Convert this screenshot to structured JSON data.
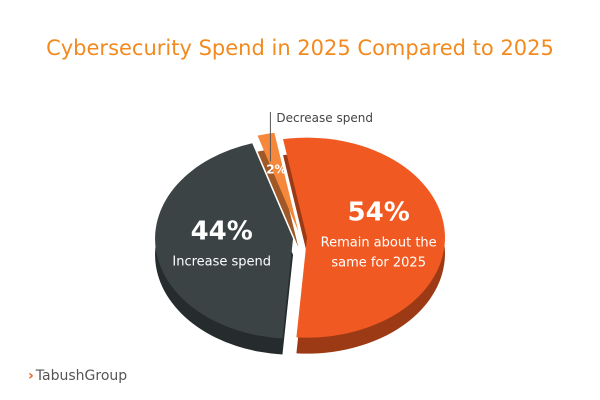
{
  "chart_data": {
    "type": "pie",
    "title": "Cybersecurity Spend in 2025 Compared to 2025",
    "categories": [
      "Remain about the same for 2025",
      "Increase spend",
      "Decrease spend"
    ],
    "values": [
      54,
      44,
      2
    ],
    "value_labels": [
      "54%",
      "44%",
      "2%"
    ],
    "colors": [
      "#f05a22",
      "#3b4345",
      "#f5883a"
    ]
  },
  "footer": {
    "brand": "TabushGroup"
  }
}
